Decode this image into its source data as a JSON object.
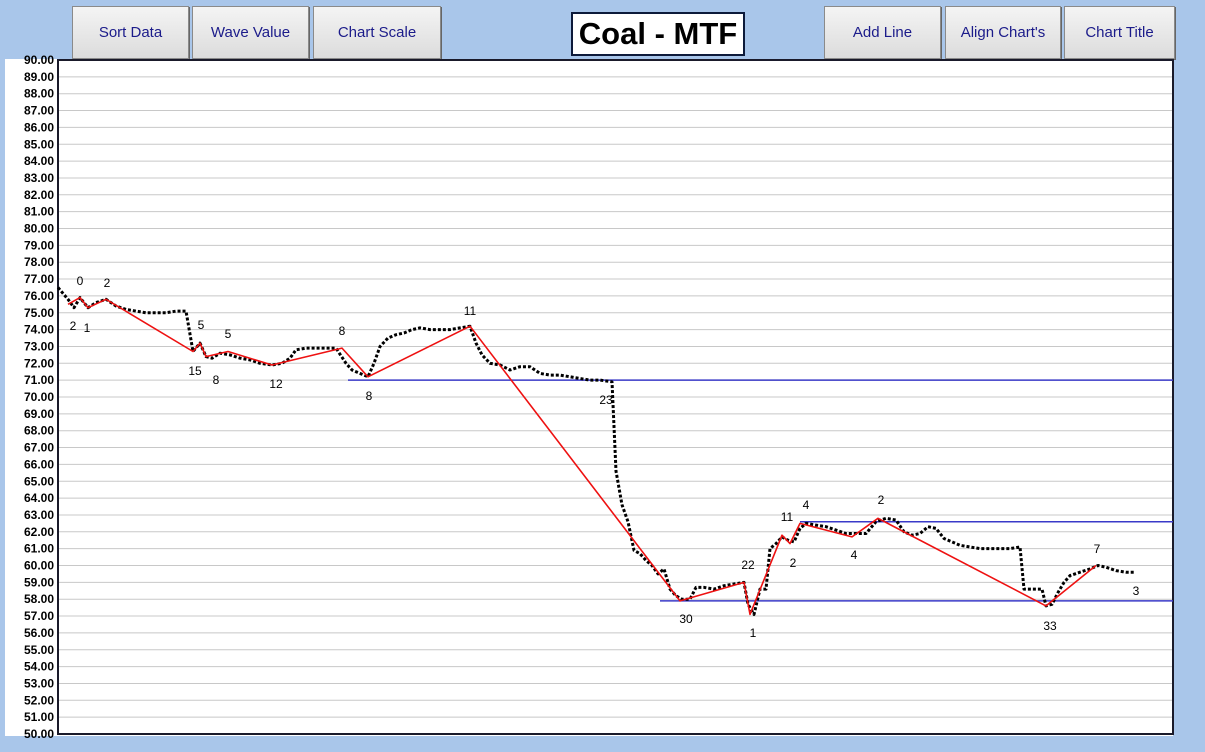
{
  "toolbar": {
    "buttons": [
      "Sort Data",
      "Wave Value",
      "Chart Scale",
      "Add Line",
      "Align Chart's",
      "Chart Title"
    ]
  },
  "chart_data": {
    "type": "line",
    "title": "Coal - MTF",
    "xlim": [
      0,
      1115
    ],
    "ylim": [
      50,
      90
    ],
    "grid": true,
    "yticks": [
      {
        "value": 50,
        "label": "50.00"
      },
      {
        "value": 51,
        "label": "51.00"
      },
      {
        "value": 52,
        "label": "52.00"
      },
      {
        "value": 53,
        "label": "53.00"
      },
      {
        "value": 54,
        "label": "54.00"
      },
      {
        "value": 55,
        "label": "55.00"
      },
      {
        "value": 56,
        "label": "56.00"
      },
      {
        "value": 57,
        "label": "57.00"
      },
      {
        "value": 58,
        "label": "58.00"
      },
      {
        "value": 59,
        "label": "59.00"
      },
      {
        "value": 60,
        "label": "60.00"
      },
      {
        "value": 61,
        "label": "61.00"
      },
      {
        "value": 62,
        "label": "62.00"
      },
      {
        "value": 63,
        "label": "63.00"
      },
      {
        "value": 64,
        "label": "64.00"
      },
      {
        "value": 65,
        "label": "65.00"
      },
      {
        "value": 66,
        "label": "66.00"
      },
      {
        "value": 67,
        "label": "67.00"
      },
      {
        "value": 68,
        "label": "68.00"
      },
      {
        "value": 69,
        "label": "69.00"
      },
      {
        "value": 70,
        "label": "70.00"
      },
      {
        "value": 71,
        "label": "71.00"
      },
      {
        "value": 72,
        "label": "72.00"
      },
      {
        "value": 73,
        "label": "73.00"
      },
      {
        "value": 74,
        "label": "74.00"
      },
      {
        "value": 75,
        "label": "75.00"
      },
      {
        "value": 76,
        "label": "76.00"
      },
      {
        "value": 77,
        "label": "77.00"
      },
      {
        "value": 78,
        "label": "78.00"
      },
      {
        "value": 79,
        "label": "79.00"
      },
      {
        "value": 80,
        "label": "80.00"
      },
      {
        "value": 81,
        "label": "81.00"
      },
      {
        "value": 82,
        "label": "82.00"
      },
      {
        "value": 83,
        "label": "83.00"
      },
      {
        "value": 84,
        "label": "84.00"
      },
      {
        "value": 85,
        "label": "85.00"
      },
      {
        "value": 86,
        "label": "86.00"
      },
      {
        "value": 87,
        "label": "87.00"
      },
      {
        "value": 88,
        "label": "88.00"
      },
      {
        "value": 89,
        "label": "89.00"
      },
      {
        "value": 90,
        "label": "90.00"
      }
    ],
    "series": [
      {
        "color": "#000000",
        "style": "dotted",
        "x": [
          0,
          10,
          16,
          22,
          30,
          38,
          48,
          58,
          68,
          78,
          88,
          98,
          108,
          118,
          128,
          135,
          142,
          148,
          154,
          162,
          172,
          182,
          192,
          202,
          214,
          224,
          232,
          238,
          248,
          258,
          268,
          278,
          288,
          294,
          302,
          310,
          316,
          322,
          330,
          338,
          346,
          354,
          362,
          372,
          382,
          392,
          402,
          412,
          418,
          424,
          432,
          442,
          452,
          462,
          472,
          482,
          492,
          502,
          512,
          522,
          532,
          542,
          554,
          558,
          564,
          570,
          576,
          582,
          588,
          594,
          600,
          606,
          612,
          618,
          624,
          632,
          638,
          646,
          656,
          666,
          676,
          686,
          690,
          696,
          702,
          708,
          712,
          718,
          724,
          730,
          736,
          742,
          748,
          758,
          768,
          778,
          788,
          798,
          808,
          818,
          828,
          838,
          846,
          854,
          862,
          870,
          878,
          886,
          894,
          902,
          912,
          922,
          932,
          942,
          952,
          962,
          966,
          976,
          984,
          988,
          994,
          1000,
          1006,
          1012,
          1022,
          1032,
          1040,
          1048,
          1058,
          1068,
          1076
        ],
        "values": [
          76.5,
          75.8,
          75.3,
          75.9,
          75.3,
          75.6,
          75.8,
          75.4,
          75.2,
          75.1,
          75.0,
          75.0,
          75.0,
          75.1,
          75.1,
          72.7,
          73.2,
          72.4,
          72.3,
          72.6,
          72.5,
          72.3,
          72.2,
          72.0,
          71.9,
          72.0,
          72.3,
          72.8,
          72.9,
          72.9,
          72.9,
          72.9,
          72.0,
          71.6,
          71.4,
          71.2,
          72.0,
          73.0,
          73.5,
          73.7,
          73.8,
          74.0,
          74.1,
          74.0,
          74.0,
          74.0,
          74.1,
          74.2,
          73.2,
          72.5,
          72.0,
          71.9,
          71.6,
          71.8,
          71.8,
          71.4,
          71.3,
          71.3,
          71.2,
          71.1,
          71.0,
          71.0,
          70.9,
          65.6,
          63.6,
          62.6,
          60.9,
          60.7,
          60.3,
          60.0,
          59.5,
          59.8,
          58.6,
          58.2,
          58.0,
          58.0,
          58.7,
          58.7,
          58.6,
          58.8,
          58.9,
          59.0,
          57.7,
          57.1,
          58.6,
          58.6,
          61.0,
          61.3,
          61.7,
          61.5,
          61.4,
          62.2,
          62.5,
          62.4,
          62.3,
          62.1,
          61.9,
          61.9,
          61.9,
          62.6,
          62.8,
          62.7,
          62.0,
          61.8,
          61.9,
          62.3,
          62.2,
          61.6,
          61.4,
          61.2,
          61.1,
          61.0,
          61.0,
          61.0,
          61.0,
          61.1,
          58.6,
          58.6,
          58.6,
          57.6,
          57.7,
          58.4,
          59.0,
          59.4,
          59.6,
          59.8,
          60.0,
          59.9,
          59.7,
          59.6,
          59.6
        ]
      },
      {
        "color": "#ee1111",
        "style": "solid",
        "x": [
          10,
          22,
          30,
          48,
          135,
          142,
          148,
          170,
          214,
          284,
          310,
          412,
          622,
          686,
          692,
          724,
          732,
          742,
          794,
          820,
          988,
          1038
        ],
        "values": [
          75.5,
          75.9,
          75.3,
          75.8,
          72.7,
          73.2,
          72.4,
          72.7,
          71.9,
          72.9,
          71.2,
          74.2,
          57.9,
          59.0,
          57.1,
          61.8,
          61.3,
          62.5,
          61.7,
          62.8,
          57.6,
          60.0
        ]
      }
    ],
    "hlines": [
      {
        "color": "#3a3ac8",
        "value": 71.0,
        "x": [
          290,
          1115
        ]
      },
      {
        "color": "#3a3ac8",
        "value": 62.6,
        "x": [
          742,
          1115
        ]
      },
      {
        "color": "#3a3ac8",
        "value": 57.9,
        "x": [
          602,
          1115
        ]
      }
    ],
    "annotations": [
      "0",
      "2",
      "2",
      "1",
      "5",
      "5",
      "15",
      "8",
      "12",
      "8",
      "8",
      "11",
      "23",
      "30",
      "22",
      "1",
      "11",
      "4",
      "2",
      "4",
      "2",
      "33",
      "7",
      "3"
    ]
  }
}
